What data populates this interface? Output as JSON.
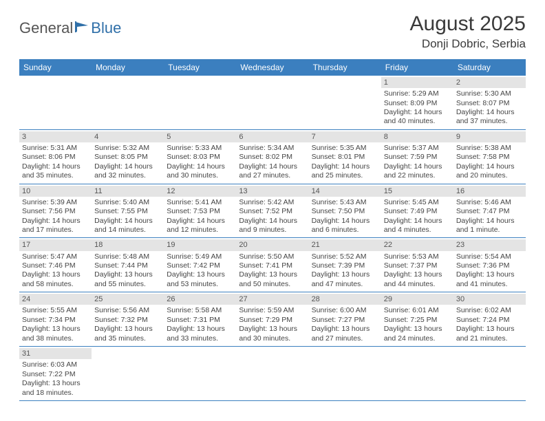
{
  "logo": {
    "text1": "General",
    "text2": "Blue"
  },
  "title": "August 2025",
  "subtitle": "Donji Dobric, Serbia",
  "colors": {
    "header_bg": "#3b7fbf",
    "header_text": "#ffffff",
    "daynum_bg": "#e4e4e4",
    "row_border": "#3b7fbf",
    "body_text": "#444444"
  },
  "daynames": [
    "Sunday",
    "Monday",
    "Tuesday",
    "Wednesday",
    "Thursday",
    "Friday",
    "Saturday"
  ],
  "weeks": [
    [
      {
        "n": "",
        "sr": "",
        "ss": "",
        "d1": "",
        "d2": ""
      },
      {
        "n": "",
        "sr": "",
        "ss": "",
        "d1": "",
        "d2": ""
      },
      {
        "n": "",
        "sr": "",
        "ss": "",
        "d1": "",
        "d2": ""
      },
      {
        "n": "",
        "sr": "",
        "ss": "",
        "d1": "",
        "d2": ""
      },
      {
        "n": "",
        "sr": "",
        "ss": "",
        "d1": "",
        "d2": ""
      },
      {
        "n": "1",
        "sr": "Sunrise: 5:29 AM",
        "ss": "Sunset: 8:09 PM",
        "d1": "Daylight: 14 hours",
        "d2": "and 40 minutes."
      },
      {
        "n": "2",
        "sr": "Sunrise: 5:30 AM",
        "ss": "Sunset: 8:07 PM",
        "d1": "Daylight: 14 hours",
        "d2": "and 37 minutes."
      }
    ],
    [
      {
        "n": "3",
        "sr": "Sunrise: 5:31 AM",
        "ss": "Sunset: 8:06 PM",
        "d1": "Daylight: 14 hours",
        "d2": "and 35 minutes."
      },
      {
        "n": "4",
        "sr": "Sunrise: 5:32 AM",
        "ss": "Sunset: 8:05 PM",
        "d1": "Daylight: 14 hours",
        "d2": "and 32 minutes."
      },
      {
        "n": "5",
        "sr": "Sunrise: 5:33 AM",
        "ss": "Sunset: 8:03 PM",
        "d1": "Daylight: 14 hours",
        "d2": "and 30 minutes."
      },
      {
        "n": "6",
        "sr": "Sunrise: 5:34 AM",
        "ss": "Sunset: 8:02 PM",
        "d1": "Daylight: 14 hours",
        "d2": "and 27 minutes."
      },
      {
        "n": "7",
        "sr": "Sunrise: 5:35 AM",
        "ss": "Sunset: 8:01 PM",
        "d1": "Daylight: 14 hours",
        "d2": "and 25 minutes."
      },
      {
        "n": "8",
        "sr": "Sunrise: 5:37 AM",
        "ss": "Sunset: 7:59 PM",
        "d1": "Daylight: 14 hours",
        "d2": "and 22 minutes."
      },
      {
        "n": "9",
        "sr": "Sunrise: 5:38 AM",
        "ss": "Sunset: 7:58 PM",
        "d1": "Daylight: 14 hours",
        "d2": "and 20 minutes."
      }
    ],
    [
      {
        "n": "10",
        "sr": "Sunrise: 5:39 AM",
        "ss": "Sunset: 7:56 PM",
        "d1": "Daylight: 14 hours",
        "d2": "and 17 minutes."
      },
      {
        "n": "11",
        "sr": "Sunrise: 5:40 AM",
        "ss": "Sunset: 7:55 PM",
        "d1": "Daylight: 14 hours",
        "d2": "and 14 minutes."
      },
      {
        "n": "12",
        "sr": "Sunrise: 5:41 AM",
        "ss": "Sunset: 7:53 PM",
        "d1": "Daylight: 14 hours",
        "d2": "and 12 minutes."
      },
      {
        "n": "13",
        "sr": "Sunrise: 5:42 AM",
        "ss": "Sunset: 7:52 PM",
        "d1": "Daylight: 14 hours",
        "d2": "and 9 minutes."
      },
      {
        "n": "14",
        "sr": "Sunrise: 5:43 AM",
        "ss": "Sunset: 7:50 PM",
        "d1": "Daylight: 14 hours",
        "d2": "and 6 minutes."
      },
      {
        "n": "15",
        "sr": "Sunrise: 5:45 AM",
        "ss": "Sunset: 7:49 PM",
        "d1": "Daylight: 14 hours",
        "d2": "and 4 minutes."
      },
      {
        "n": "16",
        "sr": "Sunrise: 5:46 AM",
        "ss": "Sunset: 7:47 PM",
        "d1": "Daylight: 14 hours",
        "d2": "and 1 minute."
      }
    ],
    [
      {
        "n": "17",
        "sr": "Sunrise: 5:47 AM",
        "ss": "Sunset: 7:46 PM",
        "d1": "Daylight: 13 hours",
        "d2": "and 58 minutes."
      },
      {
        "n": "18",
        "sr": "Sunrise: 5:48 AM",
        "ss": "Sunset: 7:44 PM",
        "d1": "Daylight: 13 hours",
        "d2": "and 55 minutes."
      },
      {
        "n": "19",
        "sr": "Sunrise: 5:49 AM",
        "ss": "Sunset: 7:42 PM",
        "d1": "Daylight: 13 hours",
        "d2": "and 53 minutes."
      },
      {
        "n": "20",
        "sr": "Sunrise: 5:50 AM",
        "ss": "Sunset: 7:41 PM",
        "d1": "Daylight: 13 hours",
        "d2": "and 50 minutes."
      },
      {
        "n": "21",
        "sr": "Sunrise: 5:52 AM",
        "ss": "Sunset: 7:39 PM",
        "d1": "Daylight: 13 hours",
        "d2": "and 47 minutes."
      },
      {
        "n": "22",
        "sr": "Sunrise: 5:53 AM",
        "ss": "Sunset: 7:37 PM",
        "d1": "Daylight: 13 hours",
        "d2": "and 44 minutes."
      },
      {
        "n": "23",
        "sr": "Sunrise: 5:54 AM",
        "ss": "Sunset: 7:36 PM",
        "d1": "Daylight: 13 hours",
        "d2": "and 41 minutes."
      }
    ],
    [
      {
        "n": "24",
        "sr": "Sunrise: 5:55 AM",
        "ss": "Sunset: 7:34 PM",
        "d1": "Daylight: 13 hours",
        "d2": "and 38 minutes."
      },
      {
        "n": "25",
        "sr": "Sunrise: 5:56 AM",
        "ss": "Sunset: 7:32 PM",
        "d1": "Daylight: 13 hours",
        "d2": "and 35 minutes."
      },
      {
        "n": "26",
        "sr": "Sunrise: 5:58 AM",
        "ss": "Sunset: 7:31 PM",
        "d1": "Daylight: 13 hours",
        "d2": "and 33 minutes."
      },
      {
        "n": "27",
        "sr": "Sunrise: 5:59 AM",
        "ss": "Sunset: 7:29 PM",
        "d1": "Daylight: 13 hours",
        "d2": "and 30 minutes."
      },
      {
        "n": "28",
        "sr": "Sunrise: 6:00 AM",
        "ss": "Sunset: 7:27 PM",
        "d1": "Daylight: 13 hours",
        "d2": "and 27 minutes."
      },
      {
        "n": "29",
        "sr": "Sunrise: 6:01 AM",
        "ss": "Sunset: 7:25 PM",
        "d1": "Daylight: 13 hours",
        "d2": "and 24 minutes."
      },
      {
        "n": "30",
        "sr": "Sunrise: 6:02 AM",
        "ss": "Sunset: 7:24 PM",
        "d1": "Daylight: 13 hours",
        "d2": "and 21 minutes."
      }
    ],
    [
      {
        "n": "31",
        "sr": "Sunrise: 6:03 AM",
        "ss": "Sunset: 7:22 PM",
        "d1": "Daylight: 13 hours",
        "d2": "and 18 minutes."
      },
      {
        "n": "",
        "sr": "",
        "ss": "",
        "d1": "",
        "d2": ""
      },
      {
        "n": "",
        "sr": "",
        "ss": "",
        "d1": "",
        "d2": ""
      },
      {
        "n": "",
        "sr": "",
        "ss": "",
        "d1": "",
        "d2": ""
      },
      {
        "n": "",
        "sr": "",
        "ss": "",
        "d1": "",
        "d2": ""
      },
      {
        "n": "",
        "sr": "",
        "ss": "",
        "d1": "",
        "d2": ""
      },
      {
        "n": "",
        "sr": "",
        "ss": "",
        "d1": "",
        "d2": ""
      }
    ]
  ]
}
